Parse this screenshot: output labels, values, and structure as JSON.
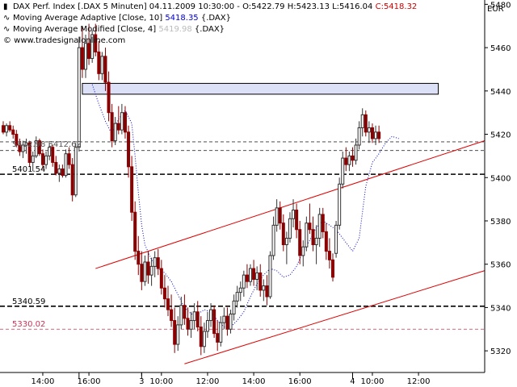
{
  "header": {
    "title_line": "DAX Perf. Index [.DAX  5 Minuten] 04.11.2009 10:30:00 - O:5422.79 H:5423.13 L:5416.04",
    "close_value": "C:5418.32",
    "indicator1_text": "Moving Average Adaptive [Close, 10]",
    "indicator1_value": "5418.35",
    "indicator1_symbol": "{.DAX}",
    "indicator2_text": "Moving Average Modified [Close, 4]",
    "indicator2_value": "5419.98",
    "indicator2_symbol": "{.DAX}",
    "source": "© www.tradesignalonline.com"
  },
  "colors": {
    "candle_up": "#333333",
    "candle_down": "#8b0000",
    "channel": "#e00000",
    "ma_adaptive": "#0000cc",
    "close_red": "#cc0000",
    "zone_fill": "#dde1f7",
    "level_red": "#cc3355"
  },
  "chart_data": {
    "type": "candlestick",
    "currency": "EUR",
    "y_range": [
      5310,
      5482
    ],
    "y_ticks": [
      5320,
      5340,
      5360,
      5380,
      5400,
      5420,
      5440,
      5460,
      5480
    ],
    "x_range": [
      0,
      146
    ],
    "x_ticks": [
      {
        "label": "14:00",
        "bar": 12
      },
      {
        "label": "16:00",
        "bar": 26
      },
      {
        "label": "3",
        "bar": 42
      },
      {
        "label": "10:00",
        "bar": 48
      },
      {
        "label": "12:00",
        "bar": 62
      },
      {
        "label": "14:00",
        "bar": 76
      },
      {
        "label": "16:00",
        "bar": 90
      },
      {
        "label": "4",
        "bar": 106
      },
      {
        "label": "10:00",
        "bar": 112
      },
      {
        "label": "12:00",
        "bar": 126
      }
    ],
    "day_separators": [
      23,
      42,
      106
    ],
    "levels": [
      {
        "value": 5416.5,
        "label": "",
        "style": "dashed",
        "color": "#333333"
      },
      {
        "value": 5412.5,
        "label": "",
        "style": "dashed",
        "color": "#333333"
      },
      {
        "value": 5401.54,
        "label": "5401.54",
        "style": "bold-dashed",
        "color": "#000000"
      },
      {
        "value": 5340.59,
        "label": "5340.59",
        "style": "bold-dashed",
        "color": "#000000"
      },
      {
        "value": 5330.02,
        "label": "5330.02",
        "style": "dashed",
        "color": "#cc3355"
      }
    ],
    "level_labels_overlap": "5412.98 5412.62",
    "zone": {
      "y_low": 5438.5,
      "y_high": 5443.5,
      "x_start": 24,
      "x_end": 132
    },
    "channel_lines": [
      {
        "from": [
          28,
          5358
        ],
        "to": [
          146,
          5417
        ]
      },
      {
        "from": [
          55,
          5314
        ],
        "to": [
          146,
          5357
        ]
      }
    ],
    "ma_adaptive": [
      [
        27,
        5443
      ],
      [
        29,
        5434
      ],
      [
        31,
        5426
      ],
      [
        33,
        5420
      ],
      [
        35,
        5427
      ],
      [
        37,
        5431
      ],
      [
        39,
        5425
      ],
      [
        40,
        5410
      ],
      [
        41,
        5393
      ],
      [
        42,
        5378
      ],
      [
        43,
        5369
      ],
      [
        45,
        5362
      ],
      [
        47,
        5358
      ],
      [
        49,
        5356
      ],
      [
        51,
        5352
      ],
      [
        53,
        5346
      ],
      [
        55,
        5340
      ],
      [
        57,
        5337
      ],
      [
        59,
        5337
      ],
      [
        61,
        5339
      ],
      [
        63,
        5338
      ],
      [
        65,
        5334
      ],
      [
        67,
        5331
      ],
      [
        69,
        5331
      ],
      [
        71,
        5334
      ],
      [
        73,
        5338
      ],
      [
        75,
        5345
      ],
      [
        77,
        5351
      ],
      [
        79,
        5355
      ],
      [
        81,
        5358
      ],
      [
        83,
        5357
      ],
      [
        85,
        5354
      ],
      [
        87,
        5355
      ],
      [
        89,
        5359
      ],
      [
        91,
        5366
      ],
      [
        93,
        5371
      ],
      [
        95,
        5377
      ],
      [
        97,
        5380
      ],
      [
        99,
        5378
      ],
      [
        101,
        5376
      ],
      [
        103,
        5372
      ],
      [
        105,
        5368
      ],
      [
        106,
        5366
      ],
      [
        108,
        5372
      ],
      [
        109,
        5384
      ],
      [
        110,
        5396
      ],
      [
        112,
        5407
      ],
      [
        114,
        5411
      ],
      [
        116,
        5416
      ],
      [
        118,
        5419
      ],
      [
        120,
        5418
      ]
    ],
    "candles": [
      [
        5424,
        5426,
        5420,
        5421
      ],
      [
        5421,
        5425,
        5419,
        5424
      ],
      [
        5424,
        5426,
        5421,
        5422
      ],
      [
        5422,
        5424,
        5418,
        5420
      ],
      [
        5420,
        5422,
        5414,
        5415
      ],
      [
        5415,
        5418,
        5410,
        5412
      ],
      [
        5412,
        5417,
        5409,
        5415
      ],
      [
        5415,
        5418,
        5411,
        5416
      ],
      [
        5416,
        5417,
        5405,
        5407
      ],
      [
        5407,
        5412,
        5403,
        5410
      ],
      [
        5410,
        5419,
        5409,
        5417
      ],
      [
        5417,
        5418,
        5410,
        5411
      ],
      [
        5411,
        5413,
        5404,
        5406
      ],
      [
        5406,
        5412,
        5404,
        5410
      ],
      [
        5410,
        5416,
        5408,
        5414
      ],
      [
        5414,
        5415,
        5405,
        5407
      ],
      [
        5407,
        5410,
        5401,
        5402
      ],
      [
        5402,
        5406,
        5398,
        5404
      ],
      [
        5404,
        5406,
        5400,
        5401
      ],
      [
        5401,
        5413,
        5400,
        5411
      ],
      [
        5411,
        5414,
        5404,
        5406
      ],
      [
        5406,
        5409,
        5389,
        5392
      ],
      [
        5392,
        5416,
        5391,
        5414
      ],
      [
        5414,
        5465,
        5412,
        5460
      ],
      [
        5460,
        5470,
        5446,
        5450
      ],
      [
        5450,
        5466,
        5446,
        5462
      ],
      [
        5462,
        5471,
        5452,
        5455
      ],
      [
        5455,
        5468,
        5453,
        5466
      ],
      [
        5466,
        5471,
        5456,
        5458
      ],
      [
        5458,
        5463,
        5445,
        5448
      ],
      [
        5448,
        5458,
        5445,
        5456
      ],
      [
        5456,
        5460,
        5440,
        5444
      ],
      [
        5444,
        5449,
        5426,
        5430
      ],
      [
        5430,
        5434,
        5414,
        5417
      ],
      [
        5417,
        5428,
        5415,
        5425
      ],
      [
        5425,
        5433,
        5420,
        5422
      ],
      [
        5422,
        5434,
        5420,
        5430
      ],
      [
        5430,
        5433,
        5418,
        5421
      ],
      [
        5421,
        5424,
        5400,
        5405
      ],
      [
        5405,
        5410,
        5380,
        5384
      ],
      [
        5384,
        5389,
        5362,
        5366
      ],
      [
        5366,
        5373,
        5355,
        5360
      ],
      [
        5360,
        5366,
        5348,
        5352
      ],
      [
        5352,
        5364,
        5350,
        5361
      ],
      [
        5361,
        5366,
        5351,
        5355
      ],
      [
        5355,
        5363,
        5350,
        5359
      ],
      [
        5359,
        5366,
        5354,
        5363
      ],
      [
        5363,
        5367,
        5355,
        5358
      ],
      [
        5358,
        5362,
        5346,
        5349
      ],
      [
        5349,
        5355,
        5340,
        5344
      ],
      [
        5344,
        5350,
        5336,
        5339
      ],
      [
        5339,
        5346,
        5331,
        5334
      ],
      [
        5334,
        5340,
        5319,
        5323
      ],
      [
        5323,
        5336,
        5320,
        5332
      ],
      [
        5332,
        5345,
        5330,
        5341
      ],
      [
        5341,
        5346,
        5332,
        5335
      ],
      [
        5335,
        5340,
        5327,
        5330
      ],
      [
        5330,
        5338,
        5326,
        5334
      ],
      [
        5334,
        5342,
        5330,
        5338
      ],
      [
        5338,
        5343,
        5329,
        5331
      ],
      [
        5331,
        5336,
        5318,
        5322
      ],
      [
        5322,
        5333,
        5319,
        5329
      ],
      [
        5329,
        5338,
        5326,
        5334
      ],
      [
        5334,
        5342,
        5331,
        5339
      ],
      [
        5339,
        5341,
        5326,
        5328
      ],
      [
        5328,
        5334,
        5320,
        5324
      ],
      [
        5324,
        5336,
        5322,
        5333
      ],
      [
        5333,
        5340,
        5330,
        5336
      ],
      [
        5336,
        5340,
        5327,
        5330
      ],
      [
        5330,
        5339,
        5328,
        5337
      ],
      [
        5337,
        5346,
        5334,
        5343
      ],
      [
        5343,
        5350,
        5340,
        5347
      ],
      [
        5347,
        5352,
        5343,
        5349
      ],
      [
        5349,
        5357,
        5345,
        5355
      ],
      [
        5355,
        5360,
        5349,
        5352
      ],
      [
        5352,
        5360,
        5350,
        5358
      ],
      [
        5358,
        5362,
        5350,
        5353
      ],
      [
        5353,
        5359,
        5348,
        5356
      ],
      [
        5356,
        5360,
        5345,
        5348
      ],
      [
        5348,
        5353,
        5343,
        5350
      ],
      [
        5350,
        5355,
        5341,
        5345
      ],
      [
        5345,
        5366,
        5344,
        5364
      ],
      [
        5364,
        5382,
        5362,
        5378
      ],
      [
        5378,
        5390,
        5375,
        5386
      ],
      [
        5386,
        5389,
        5376,
        5379
      ],
      [
        5379,
        5383,
        5366,
        5369
      ],
      [
        5369,
        5375,
        5360,
        5372
      ],
      [
        5372,
        5384,
        5370,
        5381
      ],
      [
        5381,
        5390,
        5377,
        5385
      ],
      [
        5385,
        5388,
        5372,
        5376
      ],
      [
        5376,
        5380,
        5360,
        5364
      ],
      [
        5364,
        5371,
        5359,
        5368
      ],
      [
        5368,
        5382,
        5366,
        5379
      ],
      [
        5379,
        5388,
        5374,
        5376
      ],
      [
        5376,
        5382,
        5366,
        5369
      ],
      [
        5369,
        5378,
        5360,
        5372
      ],
      [
        5372,
        5386,
        5368,
        5383
      ],
      [
        5383,
        5386,
        5372,
        5375
      ],
      [
        5375,
        5379,
        5362,
        5366
      ],
      [
        5366,
        5372,
        5358,
        5362
      ],
      [
        5362,
        5365,
        5352,
        5354
      ],
      [
        5365,
        5380,
        5363,
        5378
      ],
      [
        5378,
        5400,
        5376,
        5397
      ],
      [
        5397,
        5412,
        5395,
        5409
      ],
      [
        5409,
        5414,
        5403,
        5406
      ],
      [
        5406,
        5412,
        5403,
        5410
      ],
      [
        5410,
        5414,
        5405,
        5408
      ],
      [
        5408,
        5418,
        5406,
        5415
      ],
      [
        5415,
        5426,
        5413,
        5423
      ],
      [
        5423,
        5432,
        5419,
        5429
      ],
      [
        5429,
        5431,
        5419,
        5421
      ],
      [
        5421,
        5426,
        5416,
        5423
      ],
      [
        5423,
        5425,
        5416,
        5418
      ],
      [
        5418,
        5424,
        5415,
        5421
      ],
      [
        5421,
        5424,
        5416,
        5418
      ]
    ]
  }
}
